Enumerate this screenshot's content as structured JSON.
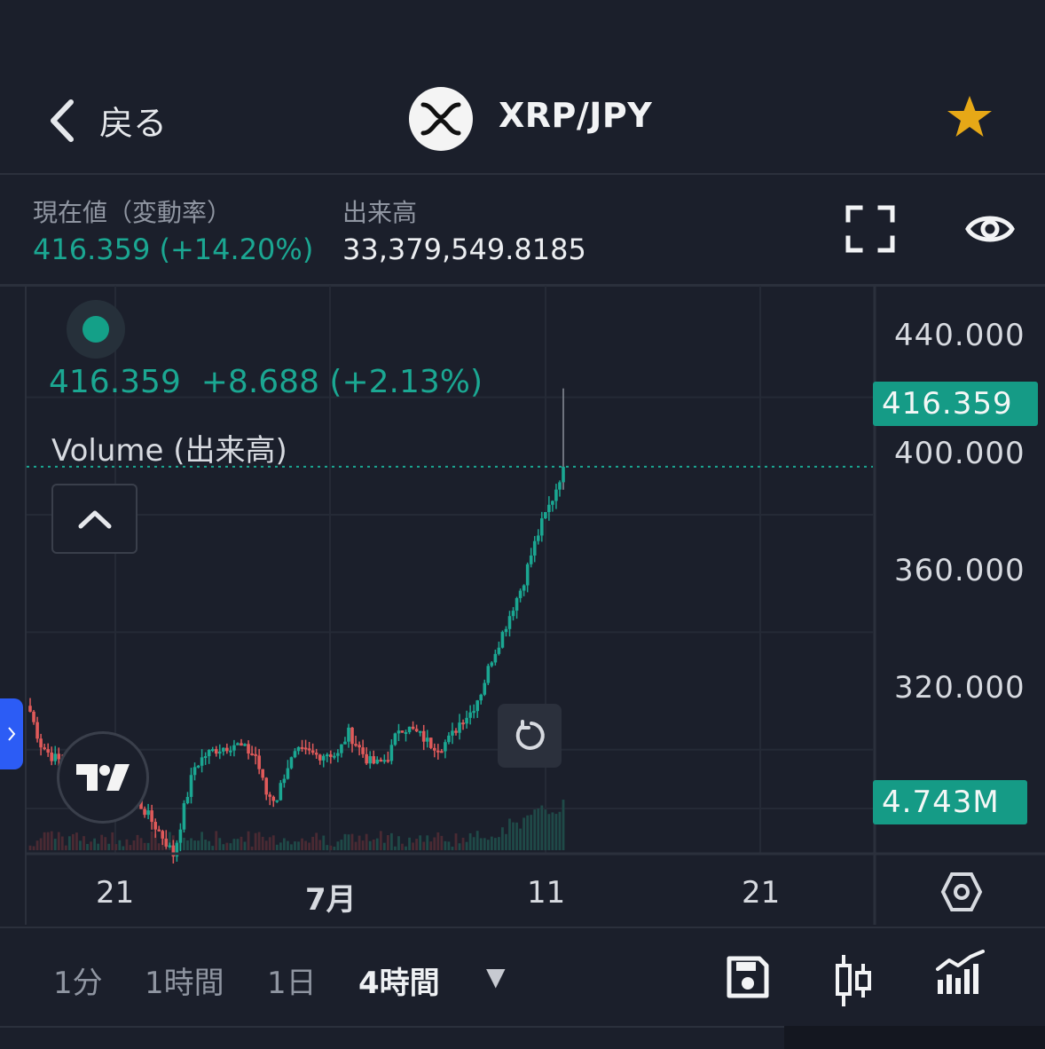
{
  "header": {
    "back_label": "戻る",
    "pair": "XRP/JPY",
    "icons": {
      "back": "chevron-left-icon",
      "logo": "xrp-logo-icon",
      "favorite": "star-icon"
    },
    "favorite_color": "#e6a817"
  },
  "info": {
    "price_label": "現在値（変動率）",
    "price_value": "416.359 (+14.20%)",
    "volume_label": "出来高",
    "volume_value": "33,379,549.8185",
    "icons": {
      "fullscreen": "fullscreen-icon",
      "visibility": "eye-icon"
    }
  },
  "chart": {
    "legend_ohlc": "416.359  +8.688 (+2.13%)",
    "legend_volume": "Volume (出来高)",
    "y_labels": [
      "440.000",
      "400.000",
      "360.000",
      "320.000"
    ],
    "current_price_tag": "416.359",
    "volume_tag": "4.743M",
    "x_labels": [
      "21",
      "7月",
      "11",
      "21"
    ],
    "icons": {
      "collapse": "chevron-up-icon",
      "side_panel": "chevron-right-icon",
      "brand": "tradingview-logo-icon",
      "reset": "reset-icon",
      "settings": "hexagon-settings-icon"
    },
    "colors": {
      "up": "#1ba792",
      "down": "#e05a5a",
      "background": "#1b1f2b",
      "grid": "#252a36"
    }
  },
  "toolbar": {
    "timeframes": [
      "1分",
      "1時間",
      "1日",
      "4時間"
    ],
    "active_timeframe": "4時間",
    "dropdown": "▼",
    "icons": {
      "save": "save-icon",
      "chart_type": "candlestick-icon",
      "indicators": "indicators-icon"
    }
  },
  "chart_data": {
    "type": "candlestick",
    "symbol": "XRP/JPY",
    "interval": "4時間",
    "ylim": [
      285,
      455
    ],
    "x_ticks": [
      "21",
      "7月",
      "11",
      "21"
    ],
    "current_price": 416.359,
    "close_path": [
      333,
      322,
      318,
      316,
      312,
      310,
      311,
      312,
      309,
      308,
      304,
      300,
      295,
      290,
      284,
      300,
      314,
      318,
      320,
      321,
      322,
      320,
      318,
      305,
      303,
      314,
      319,
      319,
      318,
      319,
      318,
      326,
      321,
      316,
      315,
      318,
      328,
      327,
      325,
      322,
      321,
      324,
      330,
      333,
      340,
      351,
      359,
      368,
      376,
      388,
      398,
      406,
      416.359
    ],
    "last_candle": {
      "high": 443,
      "close": 416.359
    },
    "last_volume": "4.743M"
  }
}
